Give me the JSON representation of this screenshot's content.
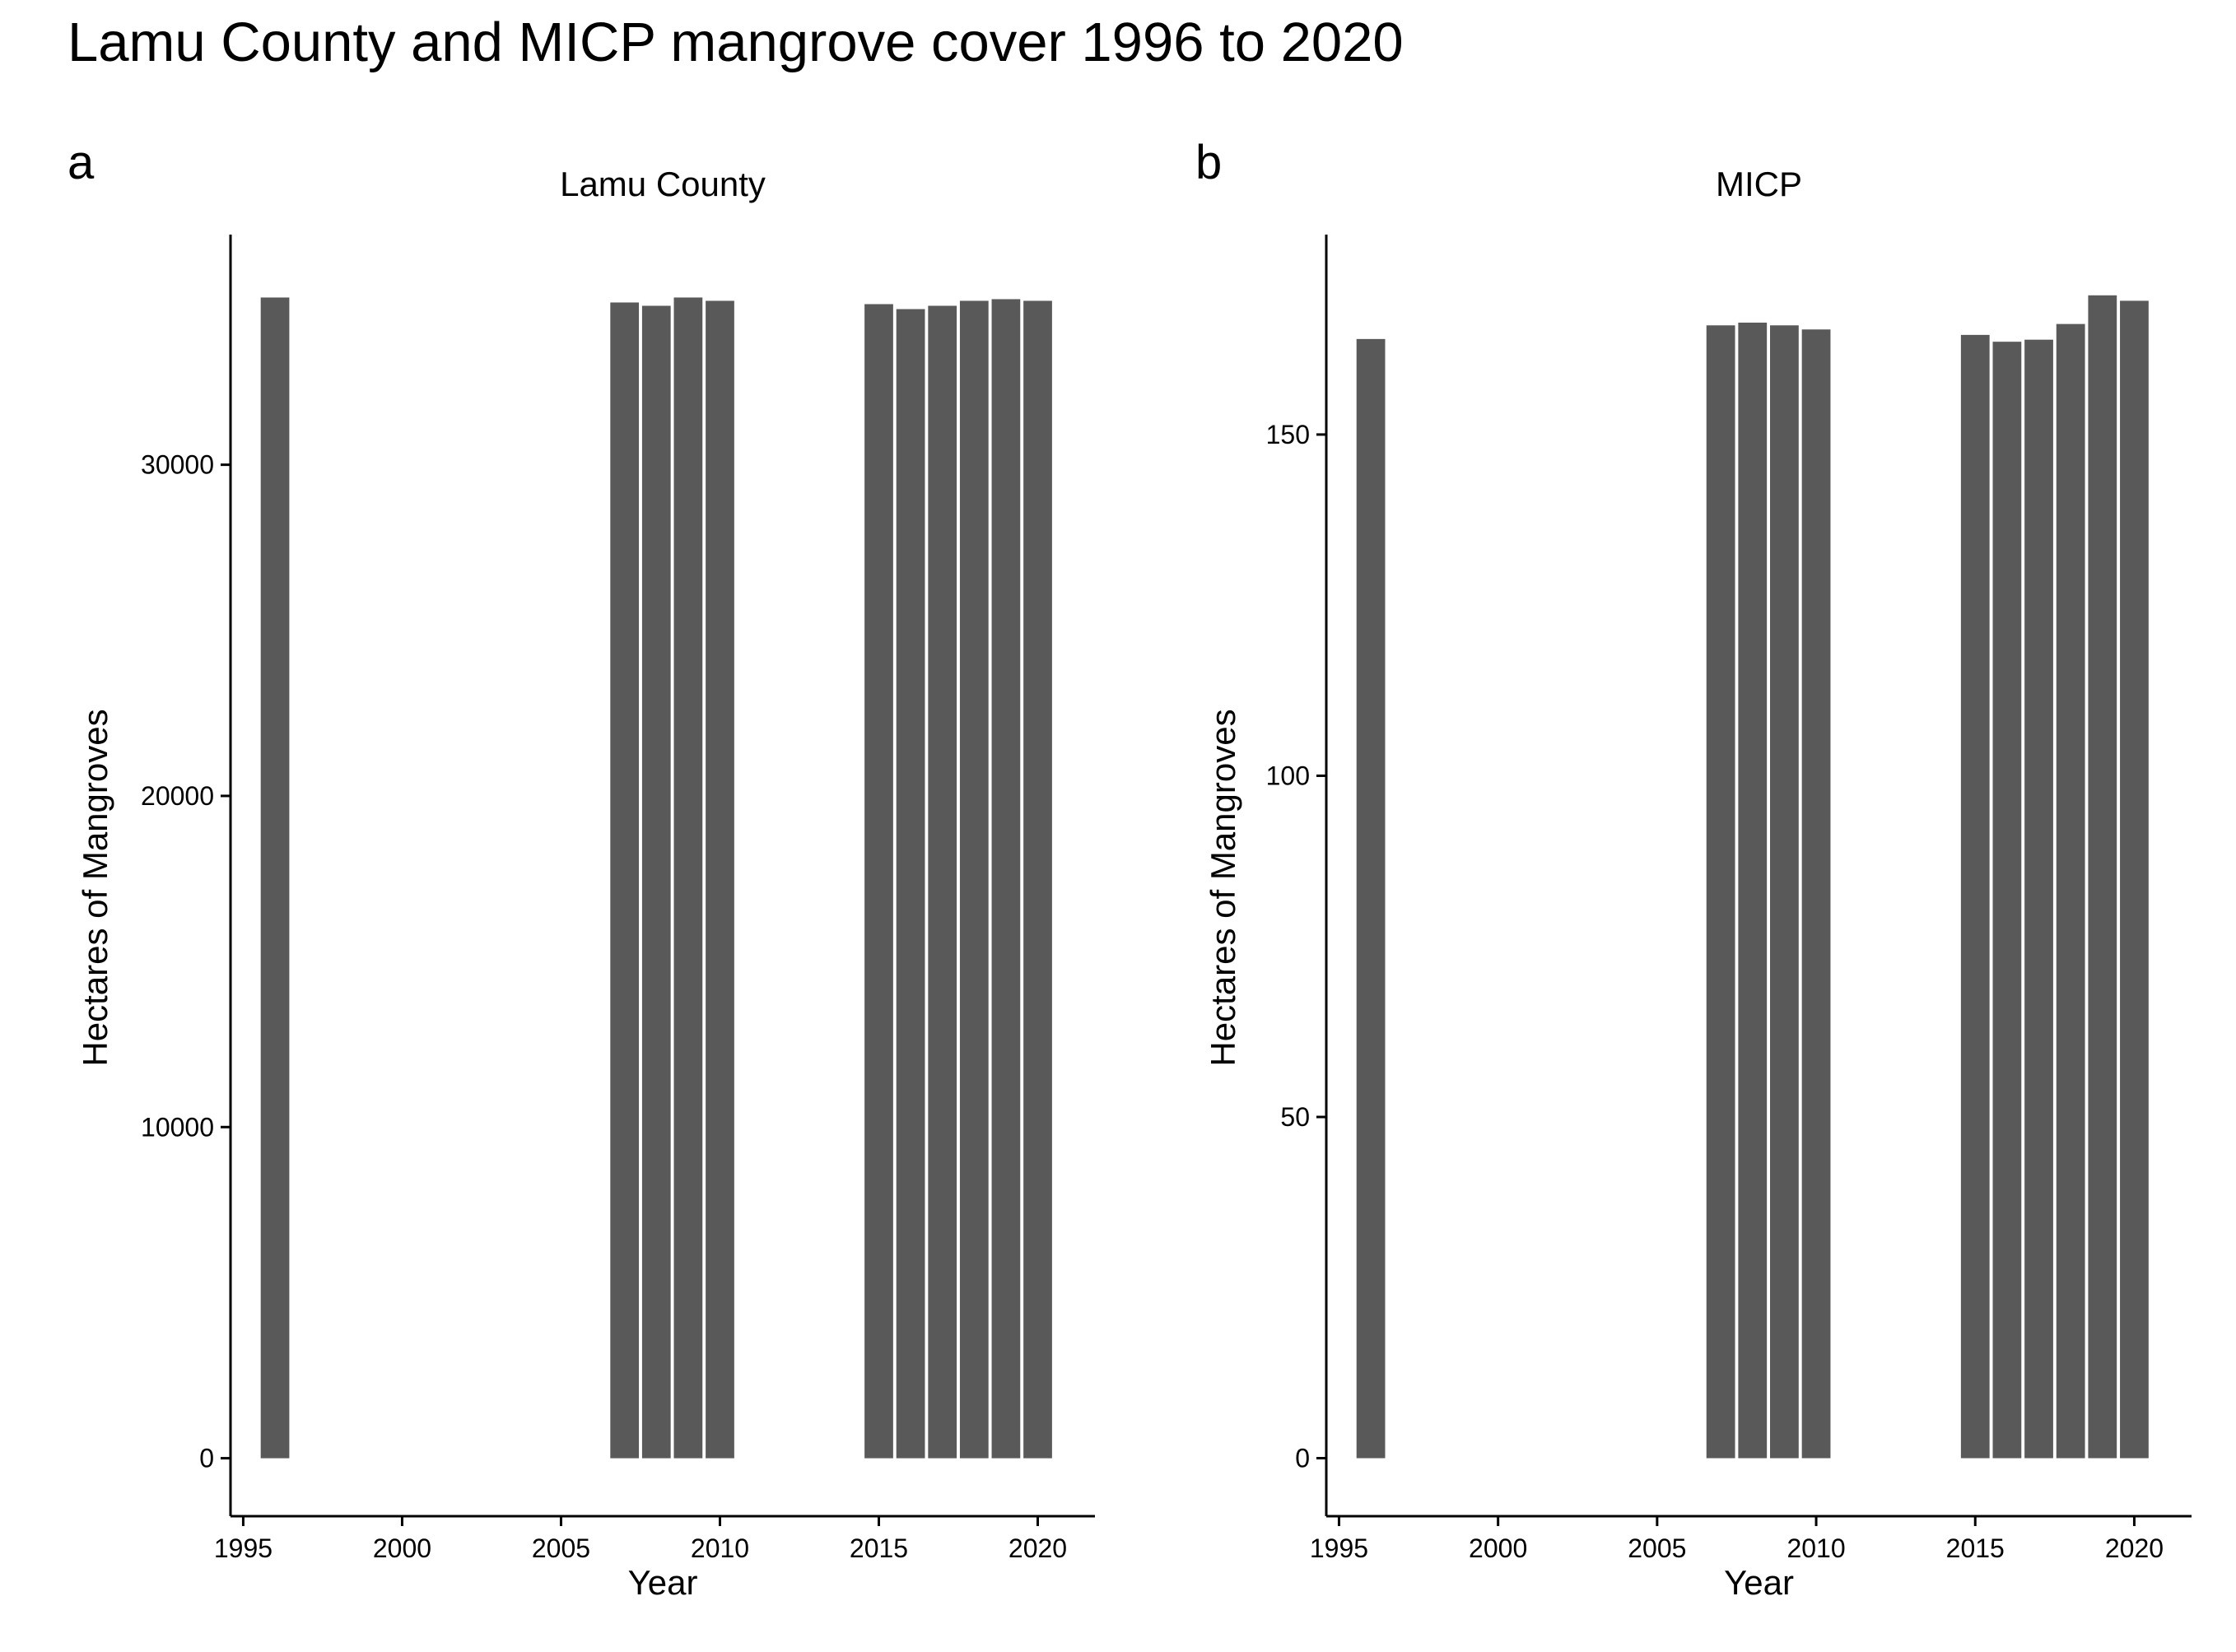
{
  "title": "Lamu County and MICP mangrove cover 1996 to 2020",
  "colors": {
    "bar": "#595959",
    "axis": "#000000",
    "background": "#ffffff"
  },
  "chart_data": [
    {
      "type": "bar",
      "panel": "a",
      "title": "Lamu County",
      "xlabel": "Year",
      "ylabel": "Hectares of Mangroves",
      "xlim": [
        1994.6,
        2021.8
      ],
      "ylim": [
        -1750,
        36950
      ],
      "xticks": [
        1995,
        2000,
        2005,
        2010,
        2015,
        2020
      ],
      "yticks": [
        0,
        10000,
        20000,
        30000
      ],
      "grid": false,
      "legend": "none",
      "x": [
        1996,
        2007,
        2008,
        2009,
        2010,
        2015,
        2016,
        2017,
        2018,
        2019,
        2020
      ],
      "values": [
        35050,
        34900,
        34800,
        35050,
        34950,
        34850,
        34700,
        34800,
        34950,
        35000,
        34950
      ]
    },
    {
      "type": "bar",
      "panel": "b",
      "title": "MICP",
      "xlabel": "Year",
      "ylabel": "Hectares of Mangroves",
      "xlim": [
        1994.6,
        2021.8
      ],
      "ylim": [
        -8.5,
        179.3
      ],
      "xticks": [
        1995,
        2000,
        2005,
        2010,
        2015,
        2020
      ],
      "yticks": [
        0,
        50,
        100,
        150
      ],
      "grid": false,
      "legend": "none",
      "x": [
        1996,
        2007,
        2008,
        2009,
        2010,
        2015,
        2016,
        2017,
        2018,
        2019,
        2020
      ],
      "values": [
        164,
        166,
        166.4,
        166,
        165.4,
        164.6,
        163.6,
        163.9,
        166.2,
        170.4,
        169.6
      ]
    }
  ]
}
